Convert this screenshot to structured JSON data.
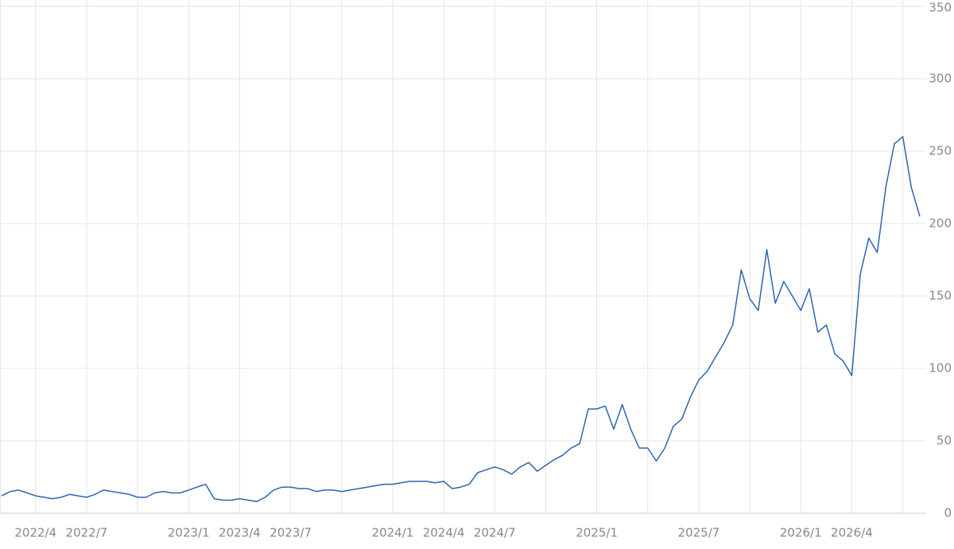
{
  "chart_data": {
    "type": "line",
    "categories": [
      null,
      null,
      null,
      null,
      "2022/4",
      null,
      null,
      null,
      null,
      null,
      "2022/7",
      null,
      null,
      null,
      null,
      null,
      null,
      null,
      null,
      null,
      null,
      null,
      "2023/1",
      null,
      null,
      null,
      null,
      null,
      "2023/4",
      null,
      null,
      null,
      null,
      null,
      "2023/7",
      null,
      null,
      null,
      null,
      null,
      null,
      null,
      null,
      null,
      null,
      null,
      "2024/1",
      null,
      null,
      null,
      null,
      null,
      "2024/4",
      null,
      null,
      null,
      null,
      null,
      "2024/7",
      null,
      null,
      null,
      null,
      null,
      null,
      null,
      null,
      null,
      null,
      null,
      "2025/1",
      null,
      null,
      null,
      null,
      null,
      null,
      null,
      null,
      null,
      null,
      null,
      "2025/7",
      null,
      null,
      null,
      null,
      null,
      null,
      null,
      null,
      null,
      null,
      null,
      "2026/1",
      null,
      null,
      null,
      null,
      null,
      "2026/4",
      null,
      null,
      null,
      null,
      null,
      null,
      null,
      null
    ],
    "values": [
      12,
      15,
      16,
      14,
      12,
      11,
      10,
      11,
      13,
      12,
      11,
      13,
      16,
      15,
      14,
      13,
      11,
      11,
      14,
      15,
      14,
      14,
      16,
      18,
      20,
      10,
      9,
      9,
      10,
      9,
      8,
      11,
      16,
      18,
      18,
      17,
      17,
      15,
      16,
      16,
      15,
      16,
      17,
      18,
      19,
      20,
      20,
      21,
      22,
      22,
      22,
      21,
      22,
      17,
      18,
      20,
      28,
      30,
      32,
      30,
      27,
      32,
      35,
      29,
      33,
      37,
      40,
      45,
      48,
      72,
      72,
      74,
      58,
      75,
      58,
      45,
      45,
      36,
      45,
      60,
      65,
      80,
      92,
      98,
      108,
      118,
      130,
      168,
      148,
      140,
      182,
      145,
      160,
      150,
      140,
      155,
      125,
      130,
      110,
      105,
      95,
      165,
      190,
      180,
      225,
      255,
      260,
      225,
      205
    ],
    "color": "#2b66b1",
    "ylim": [
      0,
      350
    ],
    "yticks": [
      0,
      50,
      100,
      150,
      200,
      250,
      300,
      350
    ],
    "grid": true
  }
}
